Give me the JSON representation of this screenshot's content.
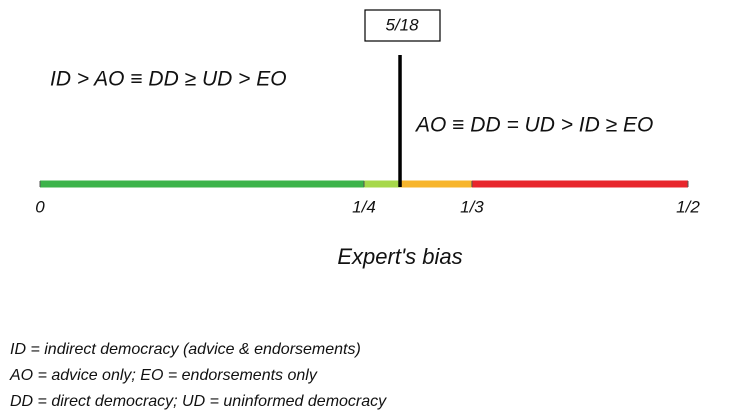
{
  "marker": {
    "value": 0.2778,
    "label": "5/18"
  },
  "left_ranking": "ID > AO ≡ DD ≥ UD > EO",
  "right_ranking": "AO ≡ DD = UD > ID ≥ EO",
  "axis": {
    "label": "Expert's bias",
    "lim": [
      0,
      0.5
    ],
    "ticks": [
      {
        "value": 0,
        "label": "0"
      },
      {
        "value": 0.25,
        "label": "1/4"
      },
      {
        "value": 0.3333,
        "label": "1/3"
      },
      {
        "value": 0.5,
        "label": "1/2"
      }
    ]
  },
  "segments": [
    {
      "from": 0,
      "to": 0.25,
      "color": "#3cb34a"
    },
    {
      "from": 0.25,
      "to": 0.2778,
      "color": "#a6d84a"
    },
    {
      "from": 0.2778,
      "to": 0.3333,
      "color": "#f7b52c"
    },
    {
      "from": 0.3333,
      "to": 0.5,
      "color": "#e8262c"
    }
  ],
  "legend": [
    "ID = indirect democracy (advice & endorsements)",
    "AO = advice only; EO = endorsements only",
    "DD = direct democracy; UD = uninformed democracy"
  ]
}
